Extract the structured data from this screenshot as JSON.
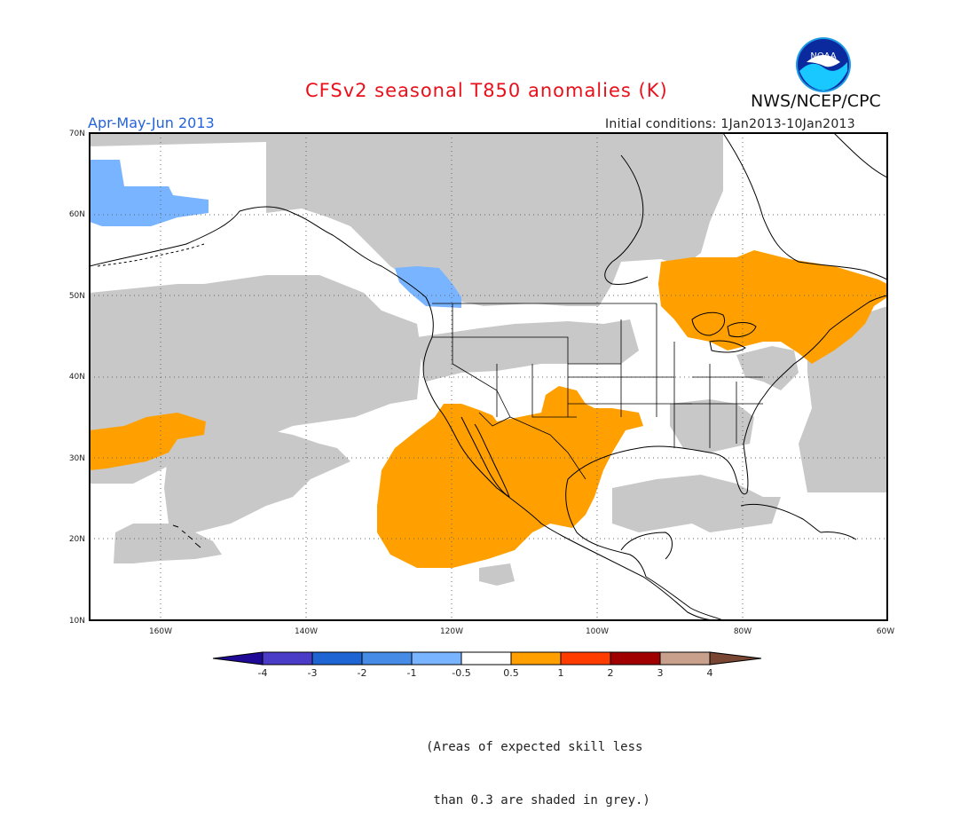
{
  "header": {
    "title": "CFSv2 seasonal T850 anomalies (K)",
    "organization": "NWS/NCEP/CPC",
    "logo_text": "NOAA",
    "period": "Apr-May-Jun 2013",
    "initial_conditions": "Initial conditions: 1Jan2013-10Jan2013"
  },
  "map": {
    "projection": "lat-lon",
    "lat_ticks": [
      "70N",
      "60N",
      "50N",
      "40N",
      "30N",
      "20N",
      "10N"
    ],
    "lon_ticks": [
      "160W",
      "140W",
      "120W",
      "100W",
      "80W",
      "60W"
    ],
    "region": "North America and Northeast Pacific",
    "shading_notes": [
      {
        "region": "Great Lakes / Quebec / Northeast",
        "anomaly": "0.5 to 1 K (orange)"
      },
      {
        "region": "Southwest US / Baja / Mexico",
        "anomaly": "0.5 to 1 K (orange)"
      },
      {
        "region": "Subtropical Pacific near 30N 165W",
        "anomaly": "0.5 to 1 K (orange)"
      },
      {
        "region": "Bering Sea / Western Alaska",
        "anomaly": "-1 to -0.5 K (light blue)"
      },
      {
        "region": "British Columbia coast",
        "anomaly": "-1 to -0.5 K (light blue)"
      }
    ],
    "colors": {
      "grey_low_skill": "#c8c8c8",
      "orange": "#ffa000",
      "light_blue": "#78b4ff",
      "land_outline": "#000000"
    }
  },
  "colorbar": {
    "labels": [
      "-4",
      "-3",
      "-2",
      "-1",
      "-0.5",
      "0.5",
      "1",
      "2",
      "3",
      "4"
    ],
    "colors": [
      "#1e0a96",
      "#4b3cc8",
      "#1e64d2",
      "#468ce6",
      "#78b4ff",
      "#ffffff",
      "#ffa000",
      "#ff3c00",
      "#a00000",
      "#c8a08c",
      "#784632"
    ]
  },
  "footnote": {
    "line1": "(Areas of expected skill less",
    "line2": " than 0.3 are shaded in grey.)"
  }
}
